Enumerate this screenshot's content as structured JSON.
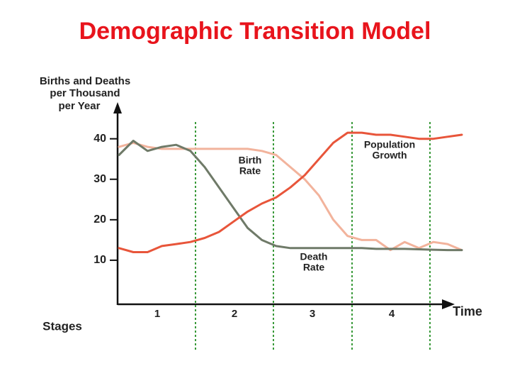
{
  "chart_data": {
    "type": "line",
    "title": "Demographic Transition Model",
    "y_label": [
      "Births and Deaths",
      "per Thousand",
      "per Year"
    ],
    "x_label": "Time",
    "stages_label": "Stages",
    "stages": [
      "1",
      "2",
      "3",
      "4"
    ],
    "categories": [
      null,
      null,
      null,
      null,
      null,
      null,
      null,
      null,
      null,
      null,
      null,
      null,
      null,
      null,
      null,
      null,
      null,
      null,
      null,
      null,
      null,
      null,
      null,
      null,
      null
    ],
    "series": [
      {
        "name": "Birth Rate",
        "color": "#f2b39c",
        "values": [
          38,
          39,
          38,
          37.5,
          37.5,
          37.5,
          37.5,
          37.5,
          37.5,
          37.5,
          37,
          36,
          33,
          30,
          26,
          20,
          16,
          15,
          15,
          12.5,
          14.5,
          13,
          14.5,
          14,
          12.5
        ]
      },
      {
        "name": "Death Rate",
        "color": "#6f7a68",
        "values": [
          36,
          39.5,
          37,
          38,
          38.5,
          37,
          33,
          28,
          23,
          18,
          15,
          13.5,
          13,
          13,
          13,
          13,
          13,
          13,
          12.8,
          12.8,
          12.8,
          12.7,
          12.6,
          12.5,
          12.5
        ]
      },
      {
        "name": "Population Growth",
        "color": "#e8553a",
        "values": [
          13,
          12,
          12,
          13.5,
          14,
          14.5,
          15.5,
          17,
          19.5,
          22,
          24,
          25.5,
          28,
          31,
          35,
          39,
          41.5,
          41.5,
          41,
          41,
          40.5,
          40,
          40,
          40.5,
          41
        ]
      }
    ],
    "annotations": [
      [
        "Birth",
        "Rate"
      ],
      [
        "Death",
        "Rate"
      ],
      [
        "Population",
        "Growth"
      ]
    ],
    "ylim": [
      0,
      48
    ],
    "yticks": [
      10,
      20,
      30,
      40
    ]
  }
}
